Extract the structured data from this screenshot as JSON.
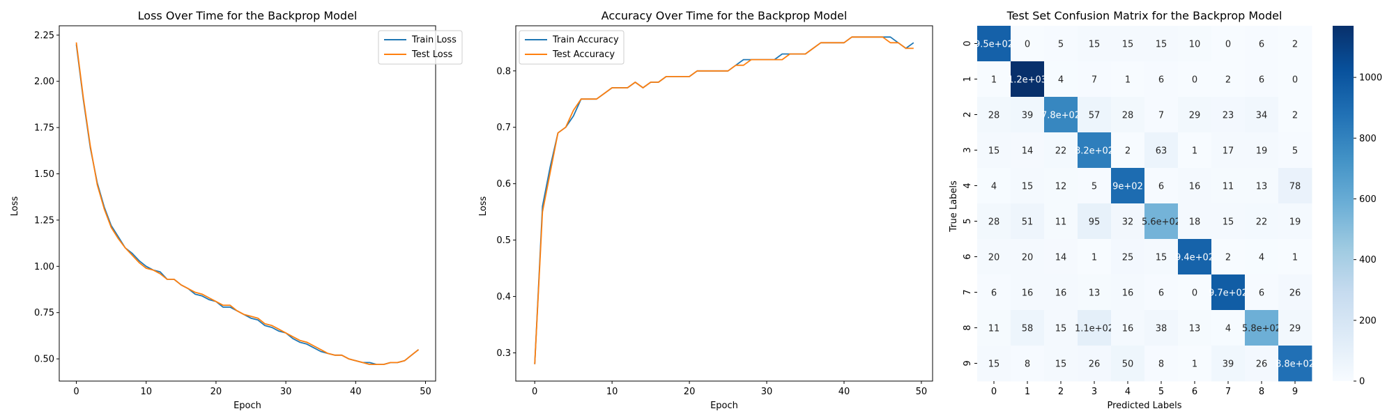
{
  "chart_data": [
    {
      "type": "line",
      "title": "Loss Over Time for the Backprop Model",
      "xlabel": "Epoch",
      "ylabel": "Loss",
      "xlim": [
        -2.45,
        51.45
      ],
      "ylim": [
        0.38,
        2.3
      ],
      "x_ticks": [
        0,
        10,
        20,
        30,
        40,
        50
      ],
      "y_ticks": [
        0.5,
        0.75,
        1.0,
        1.25,
        1.5,
        1.75,
        2.0,
        2.25
      ],
      "y_tick_labels": [
        "0.50",
        "0.75",
        "1.00",
        "1.25",
        "1.50",
        "1.75",
        "2.00",
        "2.25"
      ],
      "legend_position": "top-right",
      "grid": false,
      "series": [
        {
          "name": "Train Loss",
          "color": "#1f77b4",
          "values": [
            2.2,
            1.9,
            1.64,
            1.45,
            1.32,
            1.22,
            1.16,
            1.1,
            1.07,
            1.03,
            1.0,
            0.98,
            0.97,
            0.93,
            0.93,
            0.9,
            0.88,
            0.85,
            0.84,
            0.82,
            0.81,
            0.78,
            0.78,
            0.76,
            0.74,
            0.72,
            0.71,
            0.68,
            0.67,
            0.65,
            0.64,
            0.61,
            0.59,
            0.58,
            0.56,
            0.54,
            0.53,
            0.52,
            0.52,
            0.5,
            0.49,
            0.48,
            0.48,
            0.47,
            0.47,
            0.48,
            0.48,
            0.49,
            0.52,
            0.55
          ]
        },
        {
          "name": "Test Loss",
          "color": "#ff7f0e",
          "values": [
            2.21,
            1.91,
            1.65,
            1.44,
            1.31,
            1.21,
            1.15,
            1.1,
            1.06,
            1.02,
            0.99,
            0.98,
            0.96,
            0.93,
            0.93,
            0.9,
            0.88,
            0.86,
            0.85,
            0.83,
            0.81,
            0.79,
            0.79,
            0.76,
            0.74,
            0.73,
            0.72,
            0.69,
            0.68,
            0.66,
            0.64,
            0.62,
            0.6,
            0.59,
            0.57,
            0.55,
            0.53,
            0.52,
            0.52,
            0.5,
            0.49,
            0.48,
            0.47,
            0.47,
            0.47,
            0.48,
            0.48,
            0.49,
            0.52,
            0.55
          ]
        }
      ]
    },
    {
      "type": "line",
      "title": "Accuracy Over Time for the Backprop Model",
      "xlabel": "Epoch",
      "ylabel": "Loss",
      "xlim": [
        -2.45,
        51.45
      ],
      "ylim": [
        0.25,
        0.88
      ],
      "x_ticks": [
        0,
        10,
        20,
        30,
        40,
        50
      ],
      "y_ticks": [
        0.3,
        0.4,
        0.5,
        0.6,
        0.7,
        0.8
      ],
      "y_tick_labels": [
        "0.3",
        "0.4",
        "0.5",
        "0.6",
        "0.7",
        "0.8"
      ],
      "legend_position": "top-left",
      "grid": false,
      "series": [
        {
          "name": "Train Accuracy",
          "color": "#1f77b4",
          "values": [
            0.28,
            0.56,
            0.63,
            0.69,
            0.7,
            0.72,
            0.75,
            0.75,
            0.75,
            0.76,
            0.77,
            0.77,
            0.77,
            0.78,
            0.77,
            0.78,
            0.78,
            0.79,
            0.79,
            0.79,
            0.79,
            0.8,
            0.8,
            0.8,
            0.8,
            0.8,
            0.81,
            0.82,
            0.82,
            0.82,
            0.82,
            0.82,
            0.83,
            0.83,
            0.83,
            0.83,
            0.84,
            0.85,
            0.85,
            0.85,
            0.85,
            0.86,
            0.86,
            0.86,
            0.86,
            0.86,
            0.86,
            0.85,
            0.84,
            0.85
          ]
        },
        {
          "name": "Test Accuracy",
          "color": "#ff7f0e",
          "values": [
            0.28,
            0.55,
            0.62,
            0.69,
            0.7,
            0.73,
            0.75,
            0.75,
            0.75,
            0.76,
            0.77,
            0.77,
            0.77,
            0.78,
            0.77,
            0.78,
            0.78,
            0.79,
            0.79,
            0.79,
            0.79,
            0.8,
            0.8,
            0.8,
            0.8,
            0.8,
            0.81,
            0.81,
            0.82,
            0.82,
            0.82,
            0.82,
            0.82,
            0.83,
            0.83,
            0.83,
            0.84,
            0.85,
            0.85,
            0.85,
            0.85,
            0.86,
            0.86,
            0.86,
            0.86,
            0.86,
            0.85,
            0.85,
            0.84,
            0.84
          ]
        }
      ]
    },
    {
      "type": "heatmap",
      "title": "Test Set Confusion Matrix for the Backprop Model",
      "xlabel": "Predicted Labels",
      "ylabel": "True Labels",
      "x_categories": [
        "0",
        "1",
        "2",
        "3",
        "4",
        "5",
        "6",
        "7",
        "8",
        "9"
      ],
      "y_categories": [
        "0",
        "1",
        "2",
        "3",
        "4",
        "5",
        "6",
        "7",
        "8",
        "9"
      ],
      "values": [
        [
          950,
          0,
          5,
          15,
          15,
          15,
          10,
          0,
          6,
          2
        ],
        [
          1,
          1200,
          4,
          7,
          1,
          6,
          0,
          2,
          6,
          0
        ],
        [
          28,
          39,
          780,
          57,
          28,
          7,
          29,
          23,
          34,
          2
        ],
        [
          15,
          14,
          22,
          820,
          2,
          63,
          1,
          17,
          19,
          5
        ],
        [
          4,
          15,
          12,
          5,
          900,
          6,
          16,
          11,
          13,
          78
        ],
        [
          28,
          51,
          11,
          95,
          32,
          560,
          18,
          15,
          22,
          19
        ],
        [
          20,
          20,
          14,
          1,
          25,
          15,
          940,
          2,
          4,
          1
        ],
        [
          6,
          16,
          16,
          13,
          16,
          6,
          0,
          970,
          6,
          26
        ],
        [
          11,
          58,
          15,
          110,
          16,
          38,
          13,
          4,
          580,
          29
        ],
        [
          15,
          8,
          15,
          26,
          50,
          8,
          1,
          39,
          26,
          880
        ]
      ],
      "cell_labels": [
        [
          "9.5e+02",
          "0",
          "5",
          "15",
          "15",
          "15",
          "10",
          "0",
          "6",
          "2"
        ],
        [
          "1",
          "1.2e+03",
          "4",
          "7",
          "1",
          "6",
          "0",
          "2",
          "6",
          "0"
        ],
        [
          "28",
          "39",
          "7.8e+02",
          "57",
          "28",
          "7",
          "29",
          "23",
          "34",
          "2"
        ],
        [
          "15",
          "14",
          "22",
          "8.2e+02",
          "2",
          "63",
          "1",
          "17",
          "19",
          "5"
        ],
        [
          "4",
          "15",
          "12",
          "5",
          "9e+02",
          "6",
          "16",
          "11",
          "13",
          "78"
        ],
        [
          "28",
          "51",
          "11",
          "95",
          "32",
          "5.6e+02",
          "18",
          "15",
          "22",
          "19"
        ],
        [
          "20",
          "20",
          "14",
          "1",
          "25",
          "15",
          "9.4e+02",
          "2",
          "4",
          "1"
        ],
        [
          "6",
          "16",
          "16",
          "13",
          "16",
          "6",
          "0",
          "9.7e+02",
          "6",
          "26"
        ],
        [
          "11",
          "58",
          "15",
          "1.1e+02",
          "16",
          "38",
          "13",
          "4",
          "5.8e+02",
          "29"
        ],
        [
          "15",
          "8",
          "15",
          "26",
          "50",
          "8",
          "1",
          "39",
          "26",
          "8.8e+02"
        ]
      ],
      "colormap": "Blues",
      "vmin": 0,
      "vmax": 1170,
      "colorbar_ticks": [
        0,
        200,
        400,
        600,
        800,
        1000
      ],
      "colorbar_tick_labels": [
        "0",
        "200",
        "400",
        "600",
        "800",
        "1000"
      ]
    }
  ]
}
